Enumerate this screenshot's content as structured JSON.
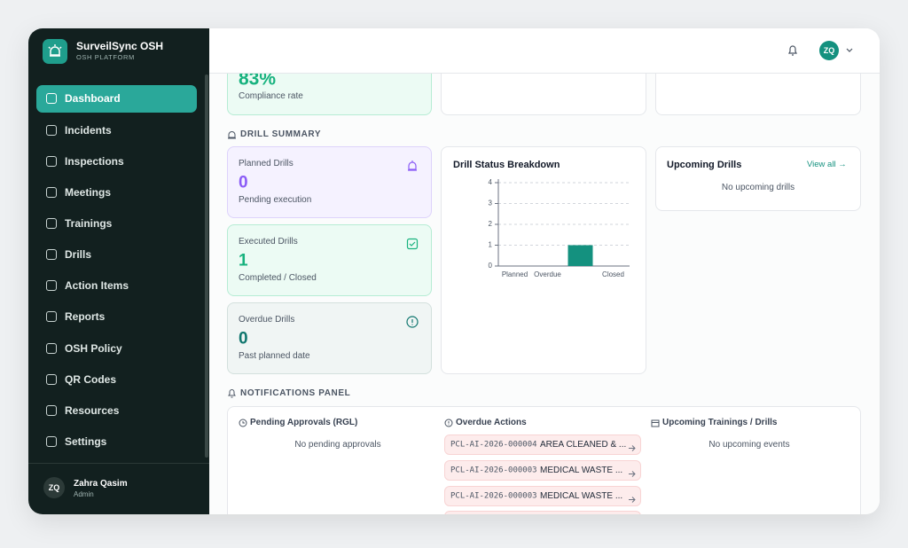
{
  "sidebar": {
    "brand": "SurveilSync OSH",
    "subtitle": "OSH PLATFORM",
    "nav": [
      "Dashboard",
      "Incidents",
      "Inspections",
      "Meetings",
      "Trainings",
      "Drills",
      "Action Items",
      "Reports",
      "OSH Policy",
      "QR Codes",
      "Resources",
      "Settings"
    ],
    "user": {
      "initials": "ZQ",
      "name": "Zahra Qasim",
      "role": "Admin"
    }
  },
  "header": {
    "avatar": "ZQ"
  },
  "compliance": {
    "value": "83%",
    "label": "Compliance rate"
  },
  "drill_summary": {
    "title": "DRILL SUMMARY",
    "cards": [
      {
        "title": "Planned Drills",
        "value": 0,
        "note": "Pending execution"
      },
      {
        "title": "Executed Drills",
        "value": 1,
        "note": "Completed / Closed"
      },
      {
        "title": "Overdue Drills",
        "value": 0,
        "note": "Past planned date"
      }
    ]
  },
  "chart_data": {
    "type": "bar",
    "title": "Drill Status Breakdown",
    "categories": [
      "Planned",
      "Overdue",
      null,
      "Closed"
    ],
    "values": [
      0,
      0,
      1,
      0
    ],
    "color": "#14917f",
    "ylim": [
      0,
      4
    ],
    "yticks": [
      0,
      1,
      2,
      3,
      4
    ],
    "grid": true
  },
  "upcoming": {
    "title": "Upcoming Drills",
    "link": "View all →",
    "empty": "No upcoming drills"
  },
  "notifications": {
    "title": "NOTIFICATIONS PANEL",
    "pending": {
      "title": "Pending Approvals (RGL)",
      "empty": "No pending approvals"
    },
    "overdue": {
      "title": "Overdue Actions",
      "items": [
        {
          "code": "PCL-AI-2026-000004",
          "text": "AREA CLEANED & ..."
        },
        {
          "code": "PCL-AI-2026-000003",
          "text": "MEDICAL WASTE ..."
        },
        {
          "code": "PCL-AI-2026-000003",
          "text": "MEDICAL WASTE ..."
        }
      ]
    },
    "trainings": {
      "title": "Upcoming Trainings / Drills",
      "empty": "No upcoming events"
    }
  }
}
